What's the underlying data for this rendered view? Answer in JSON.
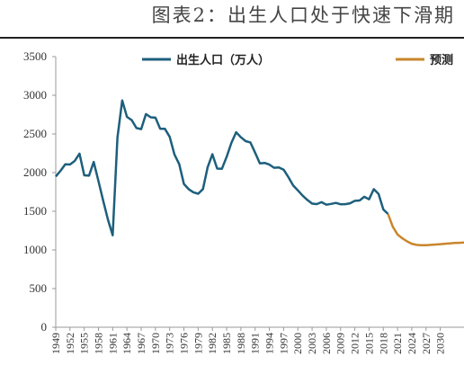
{
  "chart_data": {
    "type": "line",
    "title": "图表2：出生人口处于快速下滑期",
    "series": [
      {
        "name": "出生人口（万人）",
        "color": "#1d5f7c",
        "x": [
          1949,
          1950,
          1951,
          1952,
          1953,
          1954,
          1955,
          1956,
          1957,
          1958,
          1959,
          1960,
          1961,
          1962,
          1963,
          1964,
          1965,
          1966,
          1967,
          1968,
          1969,
          1970,
          1971,
          1972,
          1973,
          1974,
          1975,
          1976,
          1977,
          1978,
          1979,
          1980,
          1981,
          1982,
          1983,
          1984,
          1985,
          1986,
          1987,
          1988,
          1989,
          1990,
          1991,
          1992,
          1993,
          1994,
          1995,
          1996,
          1997,
          1998,
          1999,
          2000,
          2001,
          2002,
          2003,
          2004,
          2005,
          2006,
          2007,
          2008,
          2009,
          2010,
          2011,
          2012,
          2013,
          2014,
          2015,
          2016,
          2017,
          2018,
          2019
        ],
        "values": [
          1950,
          2023,
          2107,
          2105,
          2151,
          2245,
          1965,
          1961,
          2138,
          1889,
          1635,
          1389,
          1189,
          2451,
          2934,
          2721,
          2679,
          2577,
          2563,
          2757,
          2715,
          2710,
          2567,
          2566,
          2463,
          2235,
          2109,
          1853,
          1786,
          1745,
          1727,
          1787,
          2069,
          2237,
          2052,
          2050,
          2202,
          2384,
          2522,
          2457,
          2407,
          2391,
          2258,
          2119,
          2126,
          2104,
          2063,
          2067,
          2038,
          1942,
          1834,
          1771,
          1702,
          1647,
          1599,
          1593,
          1617,
          1585,
          1595,
          1608,
          1591,
          1592,
          1604,
          1635,
          1640,
          1687,
          1655,
          1786,
          1723,
          1523,
          1465
        ]
      },
      {
        "name": "预测",
        "color": "#c8862c",
        "x": [
          2019,
          2020,
          2021,
          2022,
          2023,
          2024,
          2025,
          2026,
          2027,
          2028,
          2029,
          2030,
          2031,
          2032,
          2033,
          2034,
          2035
        ],
        "values": [
          1465,
          1300,
          1200,
          1150,
          1110,
          1080,
          1065,
          1060,
          1060,
          1065,
          1070,
          1075,
          1080,
          1085,
          1090,
          1092,
          1095
        ]
      }
    ],
    "xlim": [
      1949,
      2035
    ],
    "xticks": [
      1949,
      1952,
      1955,
      1958,
      1961,
      1964,
      1967,
      1970,
      1973,
      1976,
      1979,
      1982,
      1985,
      1988,
      1991,
      1994,
      1997,
      2000,
      2003,
      2006,
      2009,
      2012,
      2015,
      2018,
      2021,
      2024,
      2027,
      2030
    ],
    "ylim": [
      0,
      3500
    ],
    "yticks": [
      0,
      500,
      1000,
      1500,
      2000,
      2500,
      3000,
      3500
    ]
  }
}
